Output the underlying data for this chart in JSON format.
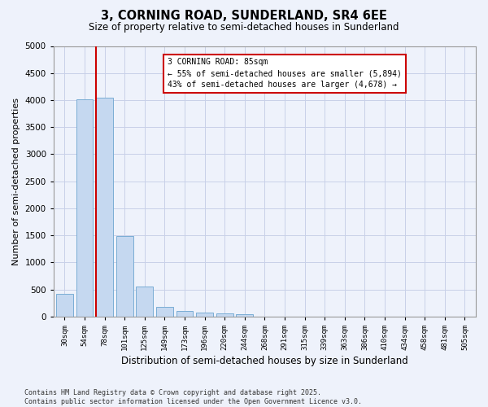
{
  "title1": "3, CORNING ROAD, SUNDERLAND, SR4 6EE",
  "title2": "Size of property relative to semi-detached houses in Sunderland",
  "xlabel": "Distribution of semi-detached houses by size in Sunderland",
  "ylabel": "Number of semi-detached properties",
  "bin_labels": [
    "30sqm",
    "54sqm",
    "78sqm",
    "101sqm",
    "125sqm",
    "149sqm",
    "173sqm",
    "196sqm",
    "220sqm",
    "244sqm",
    "268sqm",
    "291sqm",
    "315sqm",
    "339sqm",
    "363sqm",
    "386sqm",
    "410sqm",
    "434sqm",
    "458sqm",
    "481sqm",
    "505sqm"
  ],
  "bar_values": [
    420,
    4020,
    4050,
    1490,
    560,
    180,
    95,
    65,
    50,
    35,
    0,
    0,
    0,
    0,
    0,
    0,
    0,
    0,
    0,
    0,
    0
  ],
  "bar_color": "#c5d8f0",
  "bar_edge_color": "#7aadd4",
  "vline_color": "#cc0000",
  "annotation_title": "3 CORNING ROAD: 85sqm",
  "annotation_line1": "← 55% of semi-detached houses are smaller (5,894)",
  "annotation_line2": "43% of semi-detached houses are larger (4,678) →",
  "annotation_box_color": "#cc0000",
  "ylim": [
    0,
    5000
  ],
  "yticks": [
    0,
    500,
    1000,
    1500,
    2000,
    2500,
    3000,
    3500,
    4000,
    4500,
    5000
  ],
  "footer1": "Contains HM Land Registry data © Crown copyright and database right 2025.",
  "footer2": "Contains public sector information licensed under the Open Government Licence v3.0.",
  "bg_color": "#eef2fb",
  "grid_color": "#c8d0e8"
}
